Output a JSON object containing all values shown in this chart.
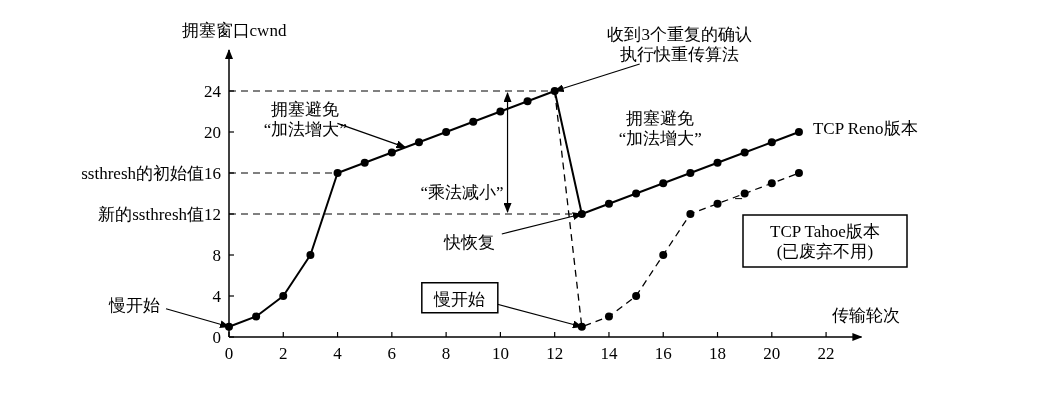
{
  "chart_data": {
    "type": "line",
    "xlabel": "传输轮次",
    "ylabel": "拥塞窗口cwnd",
    "xlim": [
      0,
      23.3
    ],
    "ylim": [
      0,
      28
    ],
    "xticks": [
      0,
      2,
      4,
      6,
      8,
      10,
      12,
      14,
      16,
      18,
      20,
      22
    ],
    "yticks": [
      0,
      4,
      8,
      {
        "value": 12,
        "label": "新的ssthresh值12"
      },
      {
        "value": 16,
        "label": "ssthresh的初始值16"
      },
      20,
      24
    ],
    "marker": "circle",
    "legend": false,
    "grid": false,
    "series": [
      {
        "name": "TCP Reno版本",
        "color": "#000000",
        "line_style": "solid",
        "x": [
          0,
          1,
          2,
          3,
          4,
          5,
          6,
          7,
          8,
          9,
          10,
          11,
          12,
          13,
          14,
          15,
          16,
          17,
          18,
          19,
          20,
          21
        ],
        "values": [
          1,
          2,
          4,
          8,
          16,
          17,
          18,
          19,
          20,
          21,
          22,
          23,
          24,
          12,
          13,
          14,
          15,
          16,
          17,
          18,
          19,
          20
        ]
      },
      {
        "name": "TCP Tahoe版本 (已废弃不用)",
        "color": "#000000",
        "line_style": "dashed",
        "x": [
          12,
          13,
          14,
          15,
          16,
          17,
          18,
          19,
          20,
          21
        ],
        "values": [
          24,
          1,
          2,
          4,
          8,
          12,
          13,
          14,
          15,
          16
        ]
      }
    ],
    "ref_lines": [
      {
        "axis": "y",
        "value": 24,
        "line_style": "dashed"
      },
      {
        "axis": "y",
        "value": 16,
        "line_style": "dashed"
      },
      {
        "axis": "y",
        "value": 12,
        "line_style": "dashed"
      }
    ],
    "annotations": [
      {
        "text": "慢开始",
        "x": 0,
        "y": 1
      },
      {
        "text": "慢开始",
        "x": 13,
        "y": 1
      },
      {
        "text": "拥塞避免“加法增大”",
        "x": 6.5,
        "y": 18.5
      },
      "“乘法减小”",
      {
        "text": "收到3个重复的确认执行快重传算法",
        "x": 12,
        "y": 24
      },
      {
        "text": "拥塞避免“加法增大”",
        "x": 16,
        "y": 15
      },
      {
        "text": "快恢复",
        "x": 13,
        "y": 12
      }
    ]
  }
}
